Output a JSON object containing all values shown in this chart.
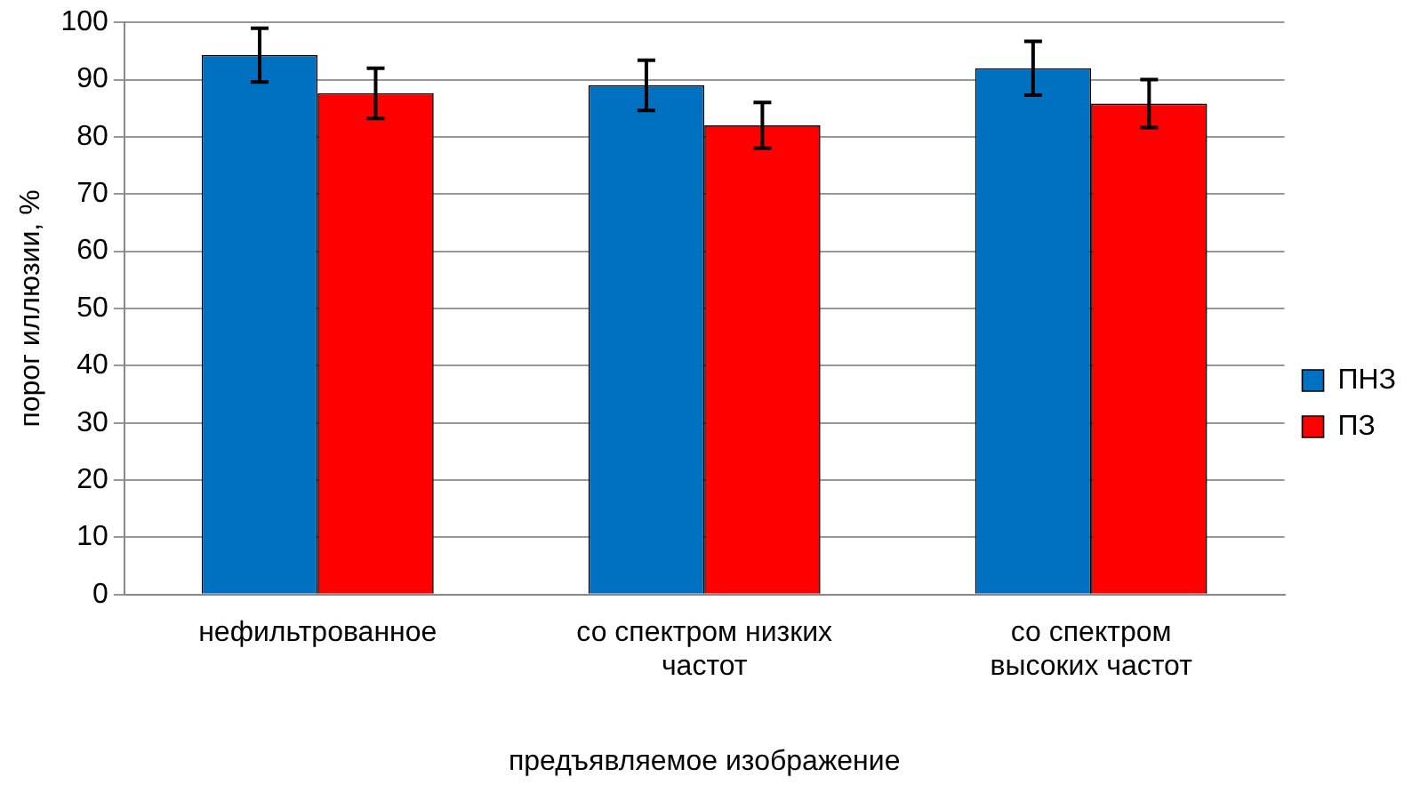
{
  "chart_data": {
    "type": "bar",
    "xlabel": "предъявляемое изображение",
    "ylabel": "порог иллюзии, %",
    "categories": [
      "нефильтрованное",
      "со спектром низких частот",
      "со спектром высоких частот"
    ],
    "series": [
      {
        "name": "ПНЗ",
        "color": "#0070c0",
        "values": [
          94.3,
          89,
          92
        ],
        "errors": [
          4.7,
          4.4,
          4.7
        ]
      },
      {
        "name": "ПЗ",
        "color": "#ff0000",
        "values": [
          87.6,
          82,
          85.8
        ],
        "errors": [
          4.4,
          4,
          4.2
        ]
      }
    ],
    "ylim": [
      0,
      100
    ],
    "yticks": [
      0,
      10,
      20,
      30,
      40,
      50,
      60,
      70,
      80,
      90,
      100
    ],
    "grid": "y",
    "legend": "right"
  }
}
